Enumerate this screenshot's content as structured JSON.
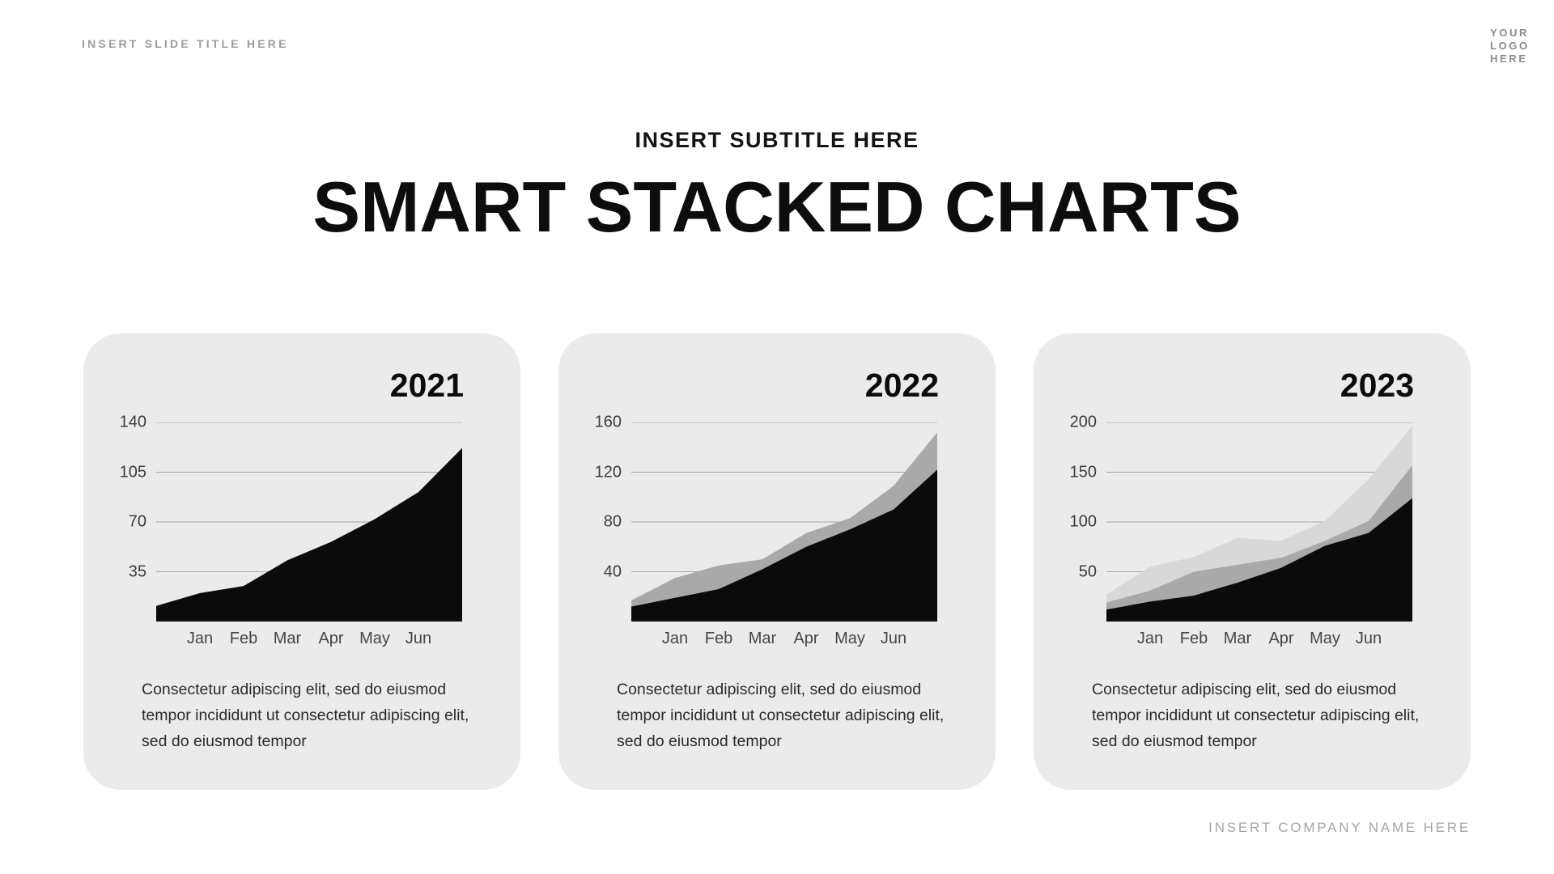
{
  "header": {
    "slide_title_placeholder": "INSERT SLIDE TITLE HERE",
    "logo_lines": [
      "YOUR",
      "LOGO",
      "HERE"
    ],
    "subtitle": "INSERT SUBTITLE HERE",
    "title": "SMART STACKED CHARTS"
  },
  "footer": {
    "company_placeholder": "INSERT COMPANY NAME HERE"
  },
  "card_description": "Consectetur adipiscing elit, sed do eiusmod tempor incididunt ut consectetur adipiscing elit, sed do eiusmod tempor",
  "colors": {
    "card_background": "#ebebeb",
    "series_black": "#0b0b0b",
    "series_gray_mid": "#a9a9a9",
    "series_gray_light": "#d8d8d8",
    "gridline": "#8f8f8f",
    "title_text": "#0d0d0d",
    "muted_text": "#9c9c9c"
  },
  "chart_data": [
    {
      "type": "area",
      "stacked": true,
      "title": "2021",
      "categories": [
        "Jan",
        "Feb",
        "Mar",
        "Apr",
        "May",
        "Jun"
      ],
      "point_layout": "8 evenly spaced points across plot; month labels sit under points 2-7",
      "ylim": [
        0,
        140
      ],
      "yticks": [
        140,
        105,
        70,
        35
      ],
      "grid": true,
      "legend": "none",
      "series": [
        {
          "name": "series-1",
          "color": "#0b0b0b",
          "values": [
            11,
            20,
            25,
            43,
            56,
            72,
            91,
            122
          ]
        }
      ]
    },
    {
      "type": "area",
      "stacked": true,
      "title": "2022",
      "categories": [
        "Jan",
        "Feb",
        "Mar",
        "Apr",
        "May",
        "Jun"
      ],
      "point_layout": "8 evenly spaced points across plot; month labels sit under points 2-7",
      "ylim": [
        0,
        160
      ],
      "yticks": [
        160,
        120,
        80,
        40
      ],
      "grid": true,
      "legend": "none",
      "series": [
        {
          "name": "series-1",
          "color": "#0b0b0b",
          "values": [
            12,
            19,
            26,
            42,
            60,
            74,
            90,
            122
          ]
        },
        {
          "name": "series-2",
          "color": "#a9a9a9",
          "values": [
            5,
            16,
            19,
            8,
            11,
            9,
            19,
            30
          ]
        }
      ]
    },
    {
      "type": "area",
      "stacked": true,
      "title": "2023",
      "categories": [
        "Jan",
        "Feb",
        "Mar",
        "Apr",
        "May",
        "Jun"
      ],
      "point_layout": "8 evenly spaced points across plot; month labels sit under points 2-7",
      "ylim": [
        0,
        200
      ],
      "yticks": [
        200,
        150,
        100,
        50
      ],
      "grid": true,
      "legend": "none",
      "series": [
        {
          "name": "series-1",
          "color": "#0b0b0b",
          "values": [
            12,
            20,
            26,
            39,
            54,
            76,
            89,
            124
          ]
        },
        {
          "name": "series-2",
          "color": "#a9a9a9",
          "values": [
            7,
            11,
            24,
            18,
            10,
            5,
            12,
            33
          ]
        },
        {
          "name": "series-3",
          "color": "#d8d8d8",
          "values": [
            8,
            24,
            15,
            27,
            17,
            20,
            42,
            40
          ]
        }
      ]
    }
  ],
  "layout": {
    "card_lefts": [
      103,
      690,
      1277
    ]
  }
}
